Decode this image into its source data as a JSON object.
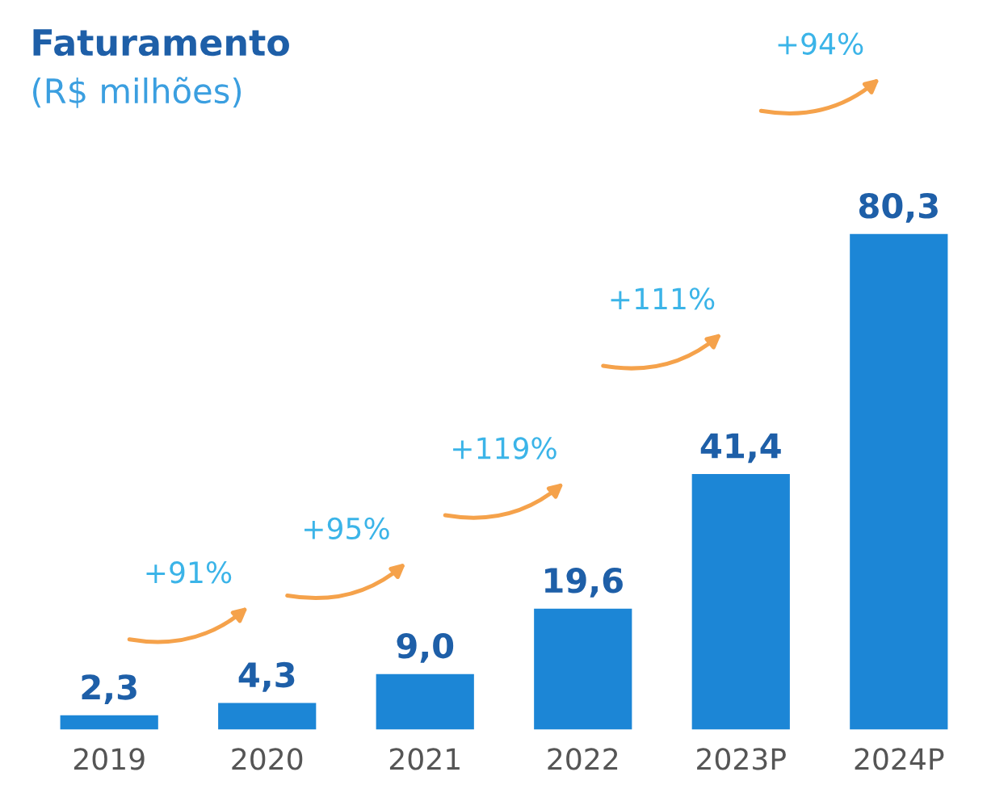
{
  "chart_data": {
    "type": "bar",
    "title": "Faturamento",
    "subtitle": "(R$ milhões)",
    "categories": [
      "2019",
      "2020",
      "2021",
      "2022",
      "2023P",
      "2024P"
    ],
    "values": [
      2.3,
      4.3,
      9.0,
      19.6,
      41.4,
      80.3
    ],
    "value_labels": [
      "2,3",
      "4,3",
      "9,0",
      "19,6",
      "41,4",
      "80,3"
    ],
    "color": "#1c86d6",
    "annotations": [
      "+91%",
      "+95%",
      "+119%",
      "+111%",
      "+94%"
    ],
    "grid": false,
    "legend": false
  }
}
